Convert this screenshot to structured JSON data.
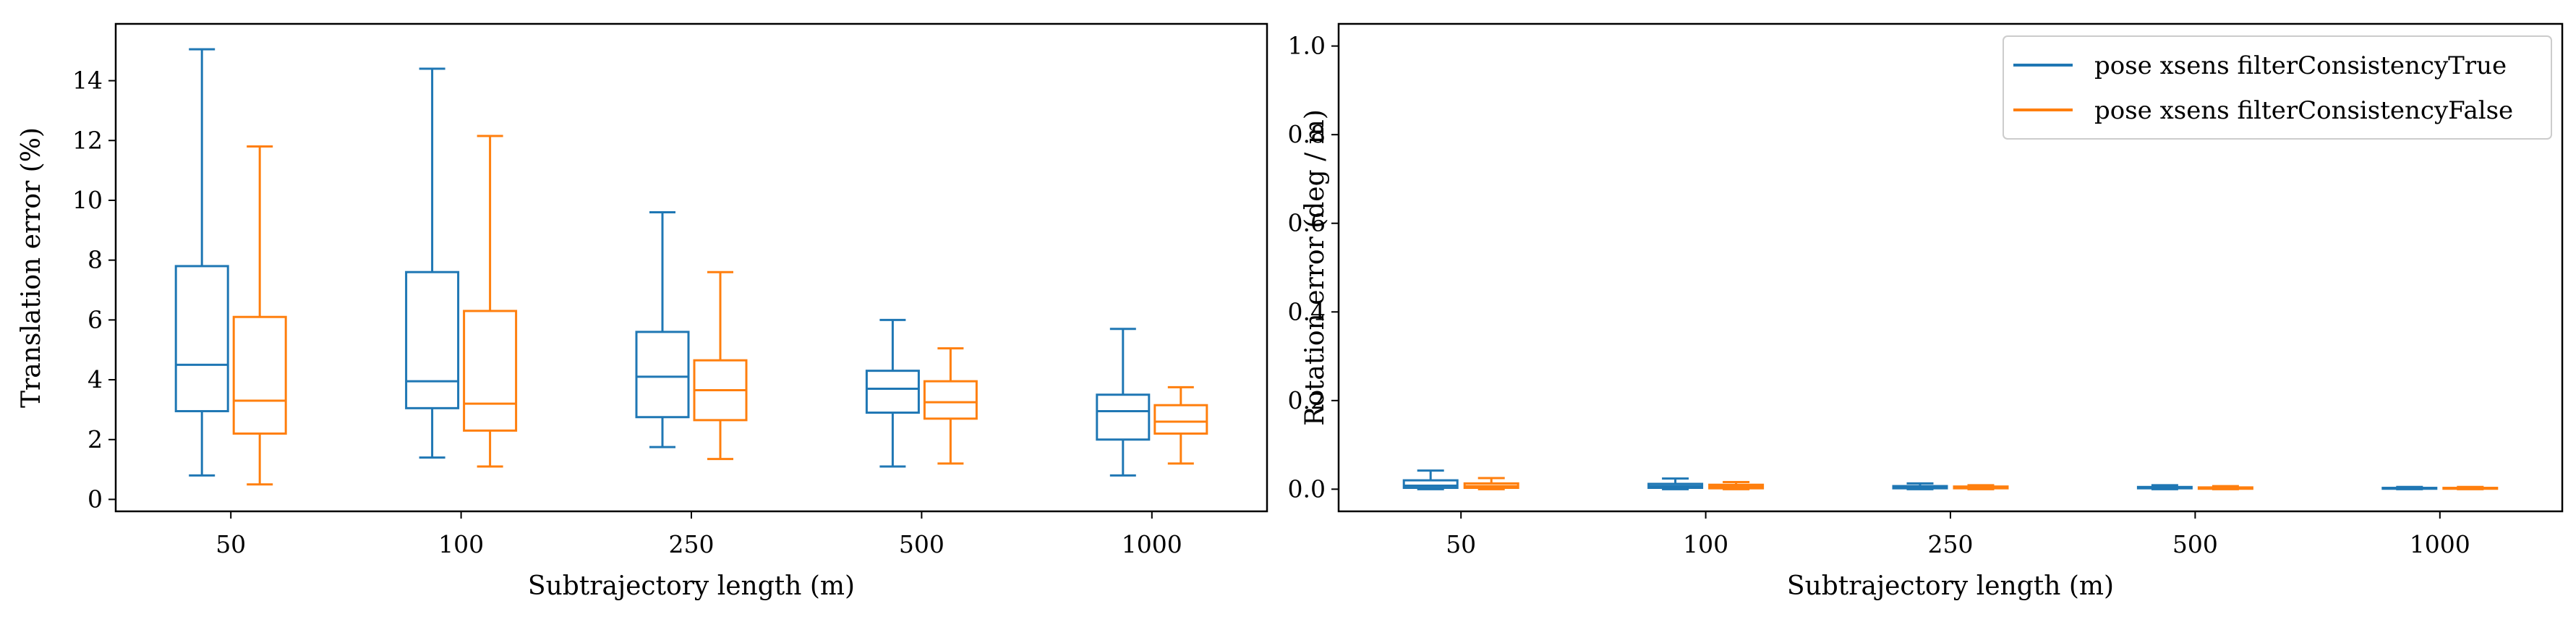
{
  "chart_data": [
    {
      "type": "box",
      "categories": [
        "50",
        "100",
        "250",
        "500",
        "1000"
      ],
      "xlabel": "Subtrajectory length (m)",
      "ylabel": "Translation error (%)",
      "ylim": [
        -0.4,
        15.9
      ],
      "yticks": [
        "0",
        "2",
        "4",
        "6",
        "8",
        "10",
        "12",
        "14"
      ],
      "grid": false,
      "series": [
        {
          "name": "pose xsens filterConsistencyTrue",
          "color": "#1f77b4",
          "boxes": [
            {
              "whislo": 0.8,
              "q1": 2.95,
              "med": 4.5,
              "q3": 7.8,
              "whishi": 15.05
            },
            {
              "whislo": 1.4,
              "q1": 3.05,
              "med": 3.95,
              "q3": 7.6,
              "whishi": 14.4
            },
            {
              "whislo": 1.75,
              "q1": 2.75,
              "med": 4.1,
              "q3": 5.6,
              "whishi": 9.6
            },
            {
              "whislo": 1.1,
              "q1": 2.9,
              "med": 3.7,
              "q3": 4.3,
              "whishi": 6.0
            },
            {
              "whislo": 0.8,
              "q1": 2.0,
              "med": 2.95,
              "q3": 3.5,
              "whishi": 5.7
            }
          ]
        },
        {
          "name": "pose xsens filterConsistencyFalse",
          "color": "#ff7f0e",
          "boxes": [
            {
              "whislo": 0.5,
              "q1": 2.2,
              "med": 3.3,
              "q3": 6.1,
              "whishi": 11.8
            },
            {
              "whislo": 1.1,
              "q1": 2.3,
              "med": 3.2,
              "q3": 6.3,
              "whishi": 12.15
            },
            {
              "whislo": 1.35,
              "q1": 2.65,
              "med": 3.65,
              "q3": 4.65,
              "whishi": 7.6
            },
            {
              "whislo": 1.2,
              "q1": 2.7,
              "med": 3.25,
              "q3": 3.95,
              "whishi": 5.05
            },
            {
              "whislo": 1.2,
              "q1": 2.2,
              "med": 2.6,
              "q3": 3.15,
              "whishi": 3.75
            }
          ]
        }
      ]
    },
    {
      "type": "box",
      "categories": [
        "50",
        "100",
        "250",
        "500",
        "1000"
      ],
      "xlabel": "Subtrajectory length (m)",
      "ylabel": "Rotation error (deg / m)",
      "ylim": [
        -0.05,
        1.05
      ],
      "yticks": [
        "0.0",
        "0.2",
        "0.4",
        "0.6",
        "0.8",
        "1.0"
      ],
      "grid": false,
      "legend_position": "top-right",
      "series": [
        {
          "name": "pose xsens filterConsistencyTrue",
          "color": "#1f77b4",
          "boxes": [
            {
              "whislo": 0.0,
              "q1": 0.003,
              "med": 0.008,
              "q3": 0.02,
              "whishi": 0.042
            },
            {
              "whislo": 0.0,
              "q1": 0.003,
              "med": 0.007,
              "q3": 0.012,
              "whishi": 0.024
            },
            {
              "whislo": 0.0,
              "q1": 0.002,
              "med": 0.005,
              "q3": 0.007,
              "whishi": 0.013
            },
            {
              "whislo": 0.0,
              "q1": 0.002,
              "med": 0.004,
              "q3": 0.005,
              "whishi": 0.009
            },
            {
              "whislo": 0.0,
              "q1": 0.001,
              "med": 0.002,
              "q3": 0.003,
              "whishi": 0.005
            }
          ]
        },
        {
          "name": "pose xsens filterConsistencyFalse",
          "color": "#ff7f0e",
          "boxes": [
            {
              "whislo": 0.0,
              "q1": 0.003,
              "med": 0.007,
              "q3": 0.013,
              "whishi": 0.025
            },
            {
              "whislo": 0.0,
              "q1": 0.002,
              "med": 0.006,
              "q3": 0.01,
              "whishi": 0.016
            },
            {
              "whislo": 0.0,
              "q1": 0.002,
              "med": 0.004,
              "q3": 0.006,
              "whishi": 0.009
            },
            {
              "whislo": 0.0,
              "q1": 0.001,
              "med": 0.003,
              "q3": 0.004,
              "whishi": 0.007
            },
            {
              "whislo": 0.0,
              "q1": 0.001,
              "med": 0.002,
              "q3": 0.003,
              "whishi": 0.005
            }
          ]
        }
      ]
    }
  ]
}
